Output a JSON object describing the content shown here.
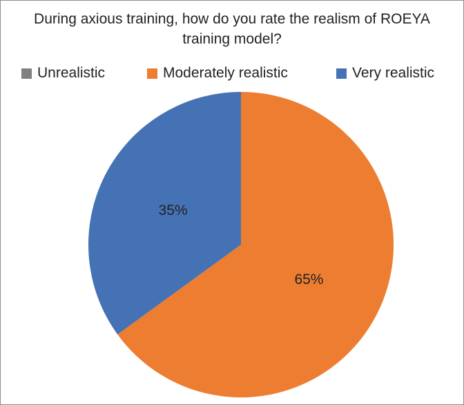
{
  "chart_data": {
    "type": "pie",
    "title_lines": [
      "During axious training, how do you rate the realism of ROEYA",
      "training model?"
    ],
    "legend_position": "top",
    "start_angle_deg": 0,
    "direction": "clockwise",
    "slices": [
      {
        "label": "Unrealistic",
        "value": 0,
        "color": "#808080",
        "data_label": ""
      },
      {
        "label": "Moderately realistic",
        "value": 65,
        "color": "#ed7d31",
        "data_label": "65%"
      },
      {
        "label": "Very realistic",
        "value": 35,
        "color": "#4472b4",
        "data_label": "35%"
      }
    ]
  }
}
